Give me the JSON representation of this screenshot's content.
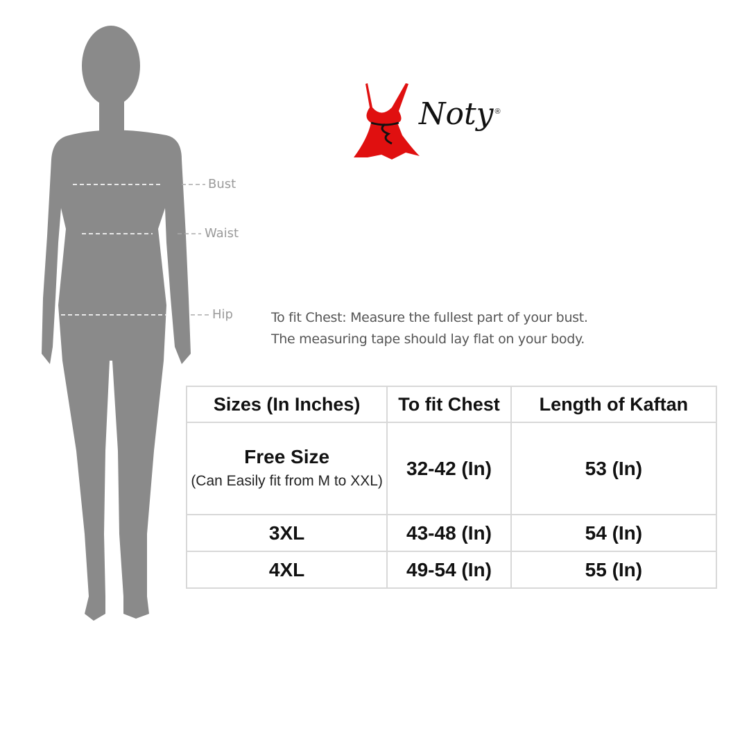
{
  "brand": {
    "name": "Noty",
    "registered_mark": "®",
    "dress_color": "#e01010"
  },
  "figure": {
    "labels": {
      "bust": "Bust",
      "waist": "Waist",
      "hip": "Hip"
    },
    "silhouette_color": "#8a8a8a"
  },
  "instructions": {
    "line1": "To fit Chest: Measure the fullest part of your bust.",
    "line2": "The measuring tape should lay flat on your body."
  },
  "size_table": {
    "headers": [
      "Sizes (In Inches)",
      "To fit Chest",
      "Length of Kaftan"
    ],
    "rows": [
      {
        "size": "Free Size",
        "size_note": "(Can Easily fit from M to XXL)",
        "chest": "32-42 (In)",
        "length": "53 (In)"
      },
      {
        "size": "3XL",
        "chest": "43-48 (In)",
        "length": "54 (In)"
      },
      {
        "size": "4XL",
        "chest": "49-54 (In)",
        "length": "55 (In)"
      }
    ]
  }
}
